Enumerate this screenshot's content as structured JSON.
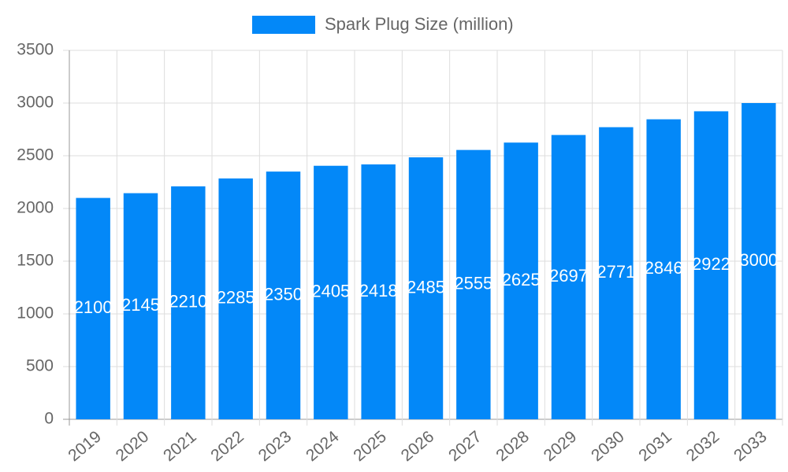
{
  "chart_data": {
    "type": "bar",
    "legend": "Spark Plug Size (million)",
    "categories": [
      "2019",
      "2020",
      "2021",
      "2022",
      "2023",
      "2024",
      "2025",
      "2026",
      "2027",
      "2028",
      "2029",
      "2030",
      "2031",
      "2032",
      "2033"
    ],
    "values": [
      2100,
      2145,
      2210,
      2285,
      2350,
      2405,
      2418,
      2485,
      2555,
      2625,
      2697,
      2771,
      2846,
      2922,
      3000
    ],
    "color": "#0388f8",
    "ylim": [
      0,
      3500
    ],
    "yticks": [
      0,
      500,
      1000,
      1500,
      2000,
      2500,
      3000,
      3500
    ],
    "grid": true
  }
}
